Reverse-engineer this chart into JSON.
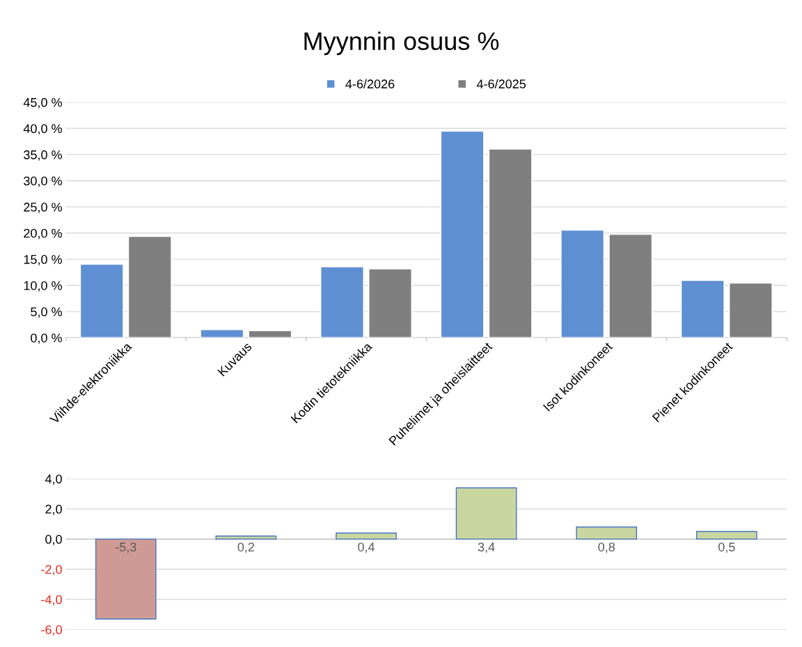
{
  "chart_data": [
    {
      "type": "bar",
      "title": "Myynnin osuus %",
      "categories": [
        "Viihde-elektroniikka",
        "Kuvaus",
        "Kodin tietotekniikka",
        "Puhelimet ja oheislaitteet",
        "Isot kodinkoneet",
        "Pienet kodinkoneet"
      ],
      "series": [
        {
          "name": "4-6/2026",
          "color": "#5f8fd3",
          "values": [
            14.1,
            1.6,
            13.6,
            39.5,
            20.6,
            11.0
          ]
        },
        {
          "name": "4-6/2025",
          "color": "#7f7f7f",
          "values": [
            19.4,
            1.4,
            13.2,
            36.1,
            19.8,
            10.5
          ]
        }
      ],
      "ylim": [
        0,
        45
      ],
      "yticks": [
        {
          "value": 0,
          "label": "0,0 %"
        },
        {
          "value": 5,
          "label": "5,0 %"
        },
        {
          "value": 10,
          "label": "10,0 %"
        },
        {
          "value": 15,
          "label": "15,0 %"
        },
        {
          "value": 20,
          "label": "20,0 %"
        },
        {
          "value": 25,
          "label": "25,0 %"
        },
        {
          "value": 30,
          "label": "30,0 %"
        },
        {
          "value": 35,
          "label": "35,0 %"
        },
        {
          "value": 40,
          "label": "40,0 %"
        },
        {
          "value": 45,
          "label": "45,0 %"
        }
      ],
      "grid": "y",
      "legend": "top"
    },
    {
      "type": "bar",
      "categories": [
        null,
        null,
        null,
        null,
        null,
        null
      ],
      "values": [
        -5.3,
        0.2,
        0.4,
        3.4,
        0.8,
        0.5
      ],
      "colors": [
        "#d09a94",
        "#c9d6a0",
        "#c9d6a0",
        "#c9d6a0",
        "#c9d6a0",
        "#c9d6a0"
      ],
      "value_labels": [
        "-5,3",
        "0,2",
        "0,4",
        "3,4",
        "0,8",
        "0,5"
      ],
      "ylim": [
        -6,
        4
      ],
      "yticks": [
        {
          "value": -6,
          "label": "-6,0"
        },
        {
          "value": -4,
          "label": "-4,0"
        },
        {
          "value": -2,
          "label": "-2,0"
        },
        {
          "value": 0,
          "label": "0,0"
        },
        {
          "value": 2,
          "label": "2,0"
        },
        {
          "value": 4,
          "label": "4,0"
        }
      ],
      "grid": "y"
    }
  ]
}
